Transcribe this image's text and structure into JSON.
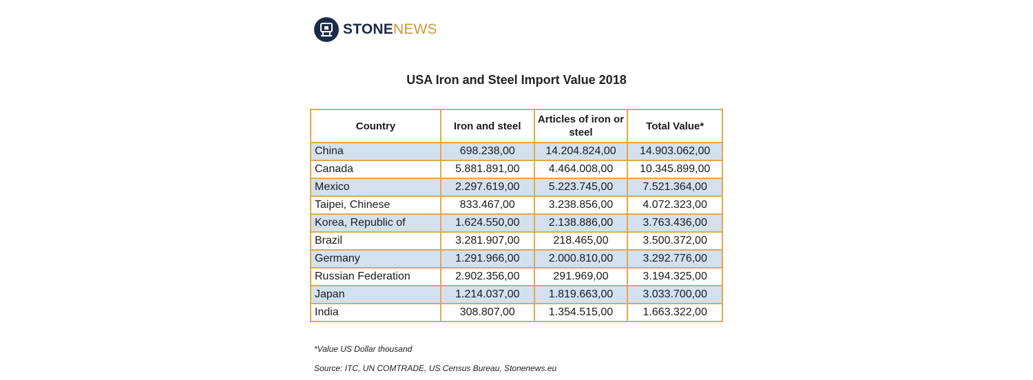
{
  "brand": {
    "name_part1": "STONE",
    "name_part2": "NEWS",
    "icon": "stonenews-logo-icon",
    "colors": {
      "navy": "#1c2b4a",
      "gold": "#c99a3c"
    }
  },
  "chart_data": {
    "type": "table",
    "title": "USA Iron and Steel Import Value 2018",
    "columns": [
      "Country",
      "Iron and steel",
      "Articles of iron or steel",
      "Total Value*"
    ],
    "rows": [
      [
        "China",
        "698.238,00",
        "14.204.824,00",
        "14.903.062,00"
      ],
      [
        "Canada",
        "5.881.891,00",
        "4.464.008,00",
        "10.345.899,00"
      ],
      [
        "Mexico",
        "2.297.619,00",
        "5.223.745,00",
        "7.521.364,00"
      ],
      [
        "Taipei, Chinese",
        "833.467,00",
        "3.238.856,00",
        "4.072.323,00"
      ],
      [
        "Korea, Republic of",
        "1.624.550,00",
        "2.138.886,00",
        "3.763.436,00"
      ],
      [
        "Brazil",
        "3.281.907,00",
        "218.465,00",
        "3.500.372,00"
      ],
      [
        "Germany",
        "1.291.966,00",
        "2.000.810,00",
        "3.292.776,00"
      ],
      [
        "Russian Federation",
        "2.902.356,00",
        "291.969,00",
        "3.194.325,00"
      ],
      [
        "Japan",
        "1.214.037,00",
        "1.819.663,00",
        "3.033.700,00"
      ],
      [
        "India",
        "308.807,00",
        "1.354.515,00",
        "1.663.322,00"
      ]
    ],
    "border_color": "#e0a84c",
    "shaded_row_color": "#d3e1ef"
  },
  "notes": {
    "unit": "*Value US Dollar thousand",
    "source": "Source: ITC, UN COMTRADE, US Census Bureau, Stonenews.eu"
  }
}
